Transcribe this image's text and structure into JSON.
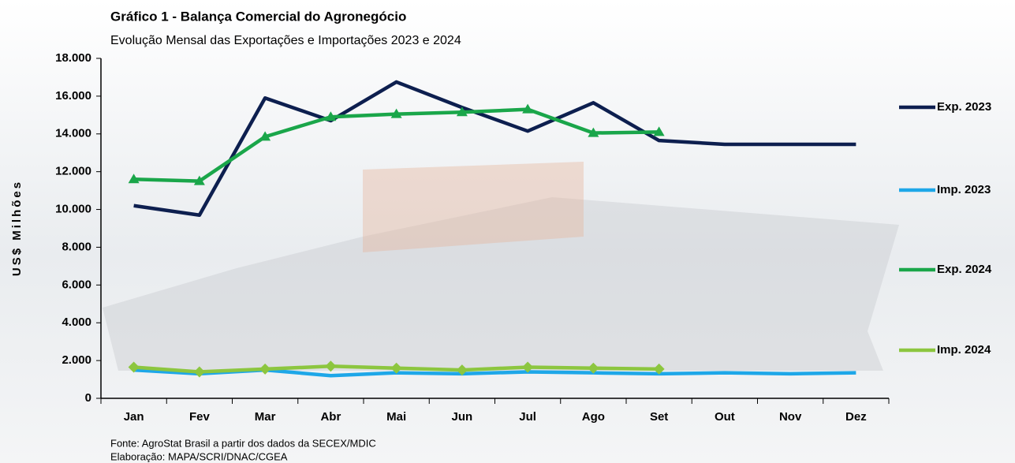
{
  "chart_data": {
    "type": "line",
    "title": "Gráfico 1 - Balança Comercial do Agronegócio",
    "subtitle": "Evolução Mensal das Exportações e Importações 2023 e 2024",
    "y_label": "US$ Milhões",
    "notes": [
      "Fonte: AgroStat Brasil a partir dos dados da SECEX/MDIC",
      "Elaboração: MAPA/SCRI/DNAC/CGEA"
    ],
    "categories": [
      "Jan",
      "Fev",
      "Mar",
      "Abr",
      "Mai",
      "Jun",
      "Jul",
      "Ago",
      "Set",
      "Out",
      "Nov",
      "Dez"
    ],
    "ylim": [
      0,
      18000
    ],
    "yticks": [
      0,
      {
        "value": 2000,
        "label": "2.000"
      },
      {
        "value": 4000,
        "label": "4.000"
      },
      {
        "value": 6000,
        "label": "6.000"
      },
      {
        "value": 8000,
        "label": "8.000"
      },
      {
        "value": 10000,
        "label": "10.000"
      },
      {
        "value": 12000,
        "label": "12.000"
      },
      {
        "value": 14000,
        "label": "14.000"
      },
      {
        "value": 16000,
        "label": "16.000"
      },
      {
        "value": 18000,
        "label": "18.000"
      }
    ],
    "legend": "right",
    "series": [
      {
        "name": "Exp. 2023",
        "color": "#0d1f4f",
        "values": [
          10200,
          9700,
          15900,
          14700,
          16750,
          15400,
          14150,
          15650,
          13650,
          13450,
          13450,
          13450
        ]
      },
      {
        "name": "Imp. 2023",
        "color": "#1ea7e8",
        "values": [
          1500,
          1300,
          1500,
          1200,
          1350,
          1300,
          1400,
          1350,
          1300,
          1350,
          1300,
          1350
        ]
      },
      {
        "name": "Exp. 2024",
        "color": "#1aa64a",
        "marker": "triangle",
        "values": [
          11600,
          11500,
          13850,
          14900,
          15050,
          15150,
          15300,
          14050,
          14100,
          null,
          null,
          null
        ]
      },
      {
        "name": "Imp. 2024",
        "color": "#8cc63f",
        "marker": "diamond",
        "values": [
          1650,
          1400,
          1550,
          1700,
          1600,
          1500,
          1650,
          1600,
          1550,
          null,
          null,
          null
        ]
      }
    ]
  }
}
